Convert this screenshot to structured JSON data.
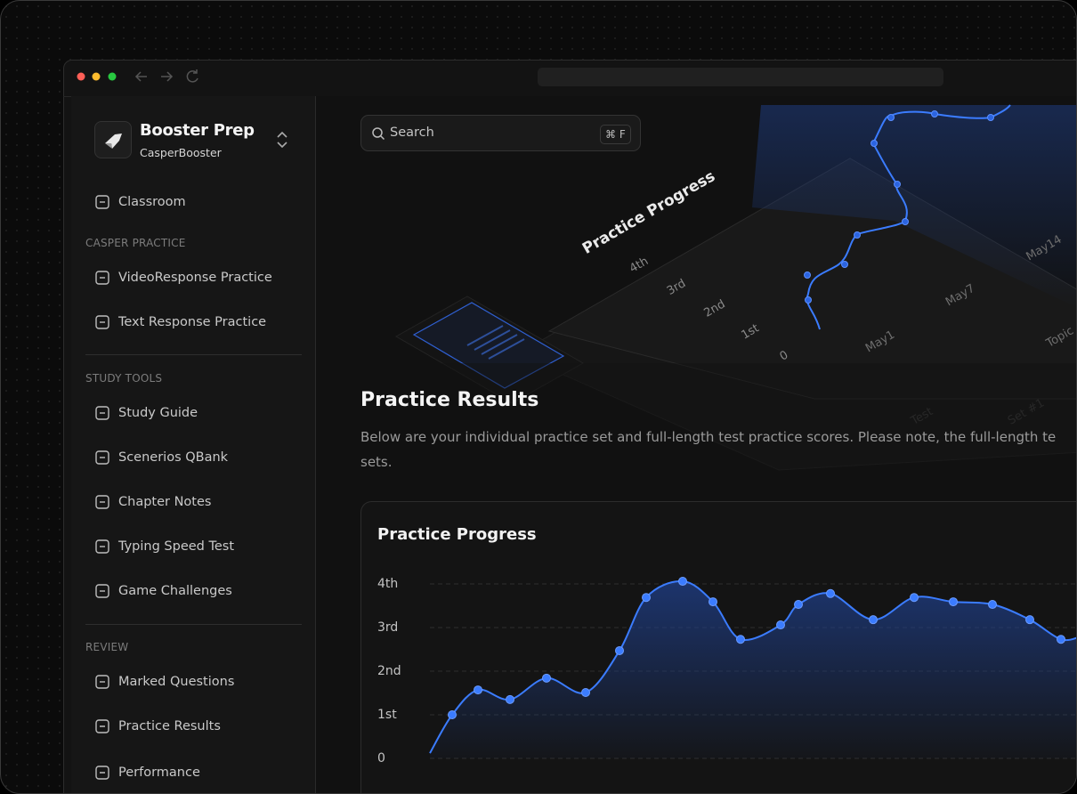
{
  "sidebar": {
    "brand": {
      "name": "Booster Prep",
      "subtitle": "CasperBooster"
    },
    "top_items": [
      "Classroom"
    ],
    "sections": [
      {
        "title": "CASPER PRACTICE",
        "items": [
          "VideoResponse Practice",
          "Text Response Practice"
        ]
      },
      {
        "title": "STUDY TOOLS",
        "items": [
          "Study Guide",
          "Scenerios QBank",
          "Chapter Notes",
          "Typing Speed Test",
          "Game Challenges"
        ]
      },
      {
        "title": "REVIEW",
        "items": [
          "Marked Questions",
          "Practice Results",
          "Performance"
        ]
      }
    ]
  },
  "search": {
    "placeholder": "Search",
    "shortcut": "⌘ F"
  },
  "hero_illustration": {
    "title": "Practice Progress",
    "y_labels": [
      "4th",
      "3rd",
      "2nd",
      "1st",
      "0"
    ],
    "x_labels": [
      "May1",
      "May7",
      "May14"
    ],
    "other_labels": [
      "Topic",
      "Test",
      "Set #1"
    ]
  },
  "page": {
    "title": "Practice Results",
    "description": [
      "Below are your individual practice set and full-length test practice scores. Please note, the full-length te",
      "sets."
    ]
  },
  "chart_data": {
    "type": "line",
    "title": "Practice Progress",
    "categories": [
      null,
      null,
      null,
      null,
      null,
      null,
      null,
      null,
      null,
      null,
      null,
      null,
      null,
      null,
      null,
      null,
      null,
      null,
      null,
      null,
      null
    ],
    "values": [
      0.12,
      1.0,
      1.57,
      1.35,
      1.84,
      1.51,
      2.47,
      3.69,
      4.06,
      3.59,
      2.73,
      3.06,
      3.53,
      3.78,
      3.18,
      3.69,
      3.59,
      3.53,
      3.18,
      2.73,
      2.8
    ],
    "color": "#3b7cff",
    "ylim": [
      0,
      4
    ],
    "yticks": [
      0,
      {
        "value": 1,
        "label": "1st"
      },
      {
        "value": 2,
        "label": "2nd"
      },
      {
        "value": 3,
        "label": "3rd"
      },
      {
        "value": 4,
        "label": "4th"
      }
    ],
    "grid": true
  }
}
